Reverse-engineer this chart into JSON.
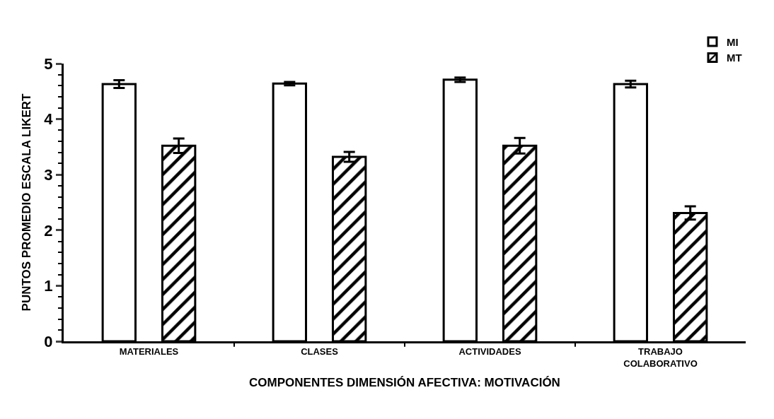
{
  "chart_data": {
    "type": "bar",
    "xlabel": "COMPONENTES DIMENSIÓN AFECTIVA: MOTIVACIÓN",
    "ylabel": "PUNTOS PROMEDIO ESCALA LIKERT",
    "categories": [
      "MATERIALES",
      "CLASES",
      "ACTIVIDADES",
      "TRABAJO\nCOLABORATIVO"
    ],
    "series": [
      {
        "name": "MI",
        "color": "#ffffff",
        "values": [
          4.63,
          4.64,
          4.71,
          4.63
        ],
        "errors": [
          0.07,
          0.03,
          0.04,
          0.06
        ]
      },
      {
        "name": "MT",
        "color": "#000000",
        "values": [
          3.52,
          3.32,
          3.52,
          2.31
        ],
        "errors": [
          0.13,
          0.09,
          0.14,
          0.12
        ]
      }
    ],
    "ylim": [
      0,
      5
    ],
    "yticks": [
      0,
      1,
      2,
      3,
      4,
      5
    ],
    "legend": "top right"
  }
}
